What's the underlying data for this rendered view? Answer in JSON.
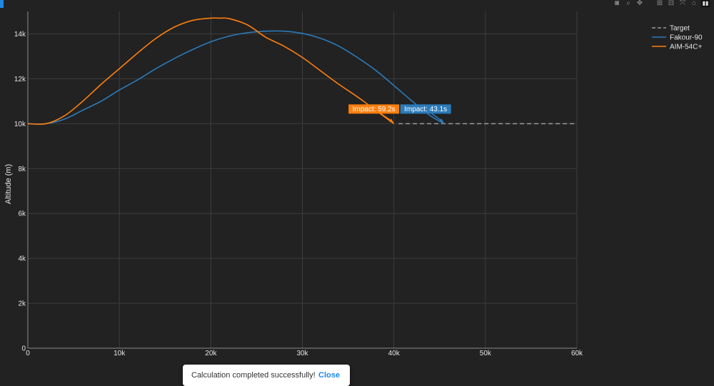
{
  "colors": {
    "background": "#222222",
    "grid": "#3d3d3d",
    "target": "#9a9a9a",
    "fakour": "#2b7bba",
    "aim": "#ff7f0e",
    "toast_button": "#1e88e5"
  },
  "modebar": {
    "buttons": [
      "camera-icon",
      "zoom-icon",
      "pan-icon",
      "zoom-in-icon",
      "zoom-out-icon",
      "autoscale-icon",
      "reset-axes-icon"
    ]
  },
  "toast": {
    "message": "Calculation completed successfully!",
    "close_label": "Close"
  },
  "chart_data": {
    "type": "line",
    "title": "",
    "xlabel": "",
    "ylabel": "Altitude (m)",
    "xlim": [
      0,
      60000
    ],
    "ylim": [
      0,
      15000
    ],
    "x_ticks": [
      0,
      10000,
      20000,
      30000,
      40000,
      50000,
      60000
    ],
    "x_tick_labels": [
      "0",
      "10k",
      "20k",
      "30k",
      "40k",
      "50k",
      "60k"
    ],
    "y_ticks": [
      0,
      2000,
      4000,
      6000,
      8000,
      10000,
      12000,
      14000
    ],
    "y_tick_labels": [
      "0",
      "2k",
      "4k",
      "6k",
      "8k",
      "10k",
      "12k",
      "14k"
    ],
    "grid": true,
    "legend_position": "top-right",
    "series": [
      {
        "name": "Target",
        "color": "#9a9a9a",
        "dash": true,
        "x": [
          40500,
          60000
        ],
        "y": [
          10000,
          10000
        ]
      },
      {
        "name": "Fakour-90",
        "color": "#2b7bba",
        "dash": false,
        "x": [
          0,
          2000,
          4000,
          6000,
          8000,
          10000,
          12000,
          14000,
          16000,
          18000,
          20000,
          22000,
          24000,
          26000,
          28000,
          30000,
          32000,
          34000,
          36000,
          38000,
          40000,
          42000,
          44000,
          45500
        ],
        "y": [
          10000,
          10000,
          10200,
          10600,
          11000,
          11500,
          11950,
          12450,
          12900,
          13300,
          13650,
          13900,
          14050,
          14120,
          14120,
          14020,
          13800,
          13450,
          12950,
          12380,
          11700,
          11000,
          10350,
          10000
        ]
      },
      {
        "name": "AIM-54C+",
        "color": "#ff7f0e",
        "dash": false,
        "x": [
          0,
          2000,
          4000,
          6000,
          8000,
          10000,
          12000,
          14000,
          16000,
          18000,
          20000,
          21000,
          22000,
          24000,
          26000,
          28000,
          30000,
          32000,
          34000,
          36000,
          38000,
          40000
        ],
        "y": [
          10000,
          10000,
          10350,
          11000,
          11750,
          12450,
          13150,
          13800,
          14300,
          14600,
          14700,
          14700,
          14680,
          14400,
          13850,
          13450,
          12950,
          12350,
          11750,
          11200,
          10600,
          10000
        ]
      }
    ],
    "annotations": [
      {
        "text": "Impact: 59.2s",
        "color": "#ff7f0e",
        "x": 40000,
        "y": 10000
      },
      {
        "text": "Impact: 43.1s",
        "color": "#2b7bba",
        "x": 45500,
        "y": 10000
      }
    ]
  }
}
